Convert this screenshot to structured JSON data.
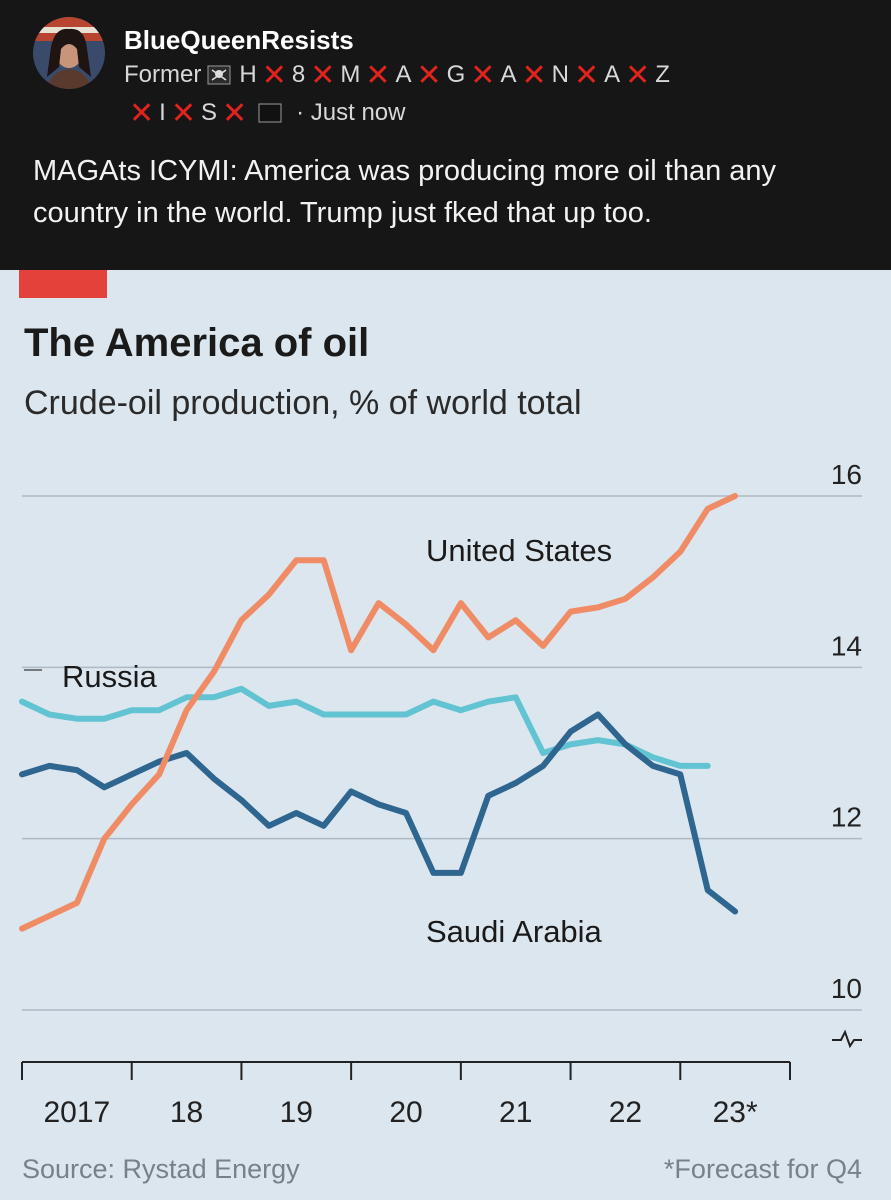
{
  "post": {
    "username": "BlueQueenResists",
    "bio_prefix": "Former",
    "bio_letters_line1": [
      "H",
      "8",
      "M",
      "A",
      "G",
      "A",
      "N",
      "A",
      "Z"
    ],
    "bio_letters_line2": [
      "I",
      "S"
    ],
    "time": "· Just now",
    "text": "MAGAts ICYMI: America was producing more oil than any country in the world. Trump just fked that up too."
  },
  "chart_data": {
    "type": "line",
    "title": "The America of oil",
    "subtitle": "Crude-oil production, % of world total",
    "x_tick_labels": [
      "2017",
      "18",
      "19",
      "20",
      "21",
      "22",
      "23*"
    ],
    "ylim": [
      10,
      16
    ],
    "y_ticks": [
      "10",
      "12",
      "14",
      "16"
    ],
    "source": "Source: Rystad Energy",
    "footnote": "*Forecast for Q4",
    "colors": {
      "united_states": "#ef8c66",
      "russia": "#62c3d3",
      "saudi_arabia": "#2e6690",
      "title_tab": "#e3413a"
    },
    "series": [
      {
        "name": "United States",
        "values": [
          [
            2017.0,
            10.95
          ],
          [
            2017.25,
            11.1
          ],
          [
            2017.5,
            11.25
          ],
          [
            2017.75,
            12.0
          ],
          [
            2018.0,
            12.4
          ],
          [
            2018.25,
            12.75
          ],
          [
            2018.5,
            13.5
          ],
          [
            2018.75,
            13.95
          ],
          [
            2019.0,
            14.55
          ],
          [
            2019.25,
            14.85
          ],
          [
            2019.5,
            15.25
          ],
          [
            2019.75,
            15.25
          ],
          [
            2020.0,
            14.2
          ],
          [
            2020.25,
            14.75
          ],
          [
            2020.5,
            14.5
          ],
          [
            2020.75,
            14.2
          ],
          [
            2021.0,
            14.75
          ],
          [
            2021.25,
            14.35
          ],
          [
            2021.5,
            14.55
          ],
          [
            2021.75,
            14.25
          ],
          [
            2022.0,
            14.65
          ],
          [
            2022.25,
            14.7
          ],
          [
            2022.5,
            14.8
          ],
          [
            2022.75,
            15.05
          ],
          [
            2023.0,
            15.35
          ],
          [
            2023.25,
            15.85
          ],
          [
            2023.5,
            16.0
          ]
        ]
      },
      {
        "name": "Russia",
        "values": [
          [
            2017.0,
            13.6
          ],
          [
            2017.25,
            13.45
          ],
          [
            2017.5,
            13.4
          ],
          [
            2017.75,
            13.4
          ],
          [
            2018.0,
            13.5
          ],
          [
            2018.25,
            13.5
          ],
          [
            2018.5,
            13.65
          ],
          [
            2018.75,
            13.65
          ],
          [
            2019.0,
            13.75
          ],
          [
            2019.25,
            13.55
          ],
          [
            2019.5,
            13.6
          ],
          [
            2019.75,
            13.45
          ],
          [
            2020.0,
            13.45
          ],
          [
            2020.25,
            13.45
          ],
          [
            2020.5,
            13.45
          ],
          [
            2020.75,
            13.6
          ],
          [
            2021.0,
            13.5
          ],
          [
            2021.25,
            13.6
          ],
          [
            2021.5,
            13.65
          ],
          [
            2021.75,
            13.0
          ],
          [
            2022.0,
            13.1
          ],
          [
            2022.25,
            13.15
          ],
          [
            2022.5,
            13.1
          ],
          [
            2022.75,
            12.95
          ],
          [
            2023.0,
            12.85
          ],
          [
            2023.25,
            12.85
          ]
        ]
      },
      {
        "name": "Saudi Arabia",
        "values": [
          [
            2017.0,
            12.75
          ],
          [
            2017.25,
            12.85
          ],
          [
            2017.5,
            12.8
          ],
          [
            2017.75,
            12.6
          ],
          [
            2018.0,
            12.75
          ],
          [
            2018.25,
            12.9
          ],
          [
            2018.5,
            13.0
          ],
          [
            2018.75,
            12.7
          ],
          [
            2019.0,
            12.45
          ],
          [
            2019.25,
            12.15
          ],
          [
            2019.5,
            12.3
          ],
          [
            2019.75,
            12.15
          ],
          [
            2020.0,
            12.55
          ],
          [
            2020.25,
            12.4
          ],
          [
            2020.5,
            12.3
          ],
          [
            2020.75,
            11.6
          ],
          [
            2021.0,
            11.6
          ],
          [
            2021.25,
            12.5
          ],
          [
            2021.5,
            12.65
          ],
          [
            2021.75,
            12.85
          ],
          [
            2022.0,
            13.25
          ],
          [
            2022.25,
            13.45
          ],
          [
            2022.5,
            13.1
          ],
          [
            2022.75,
            12.85
          ],
          [
            2023.0,
            12.75
          ],
          [
            2023.25,
            11.4
          ],
          [
            2023.5,
            11.15
          ]
        ]
      }
    ]
  }
}
